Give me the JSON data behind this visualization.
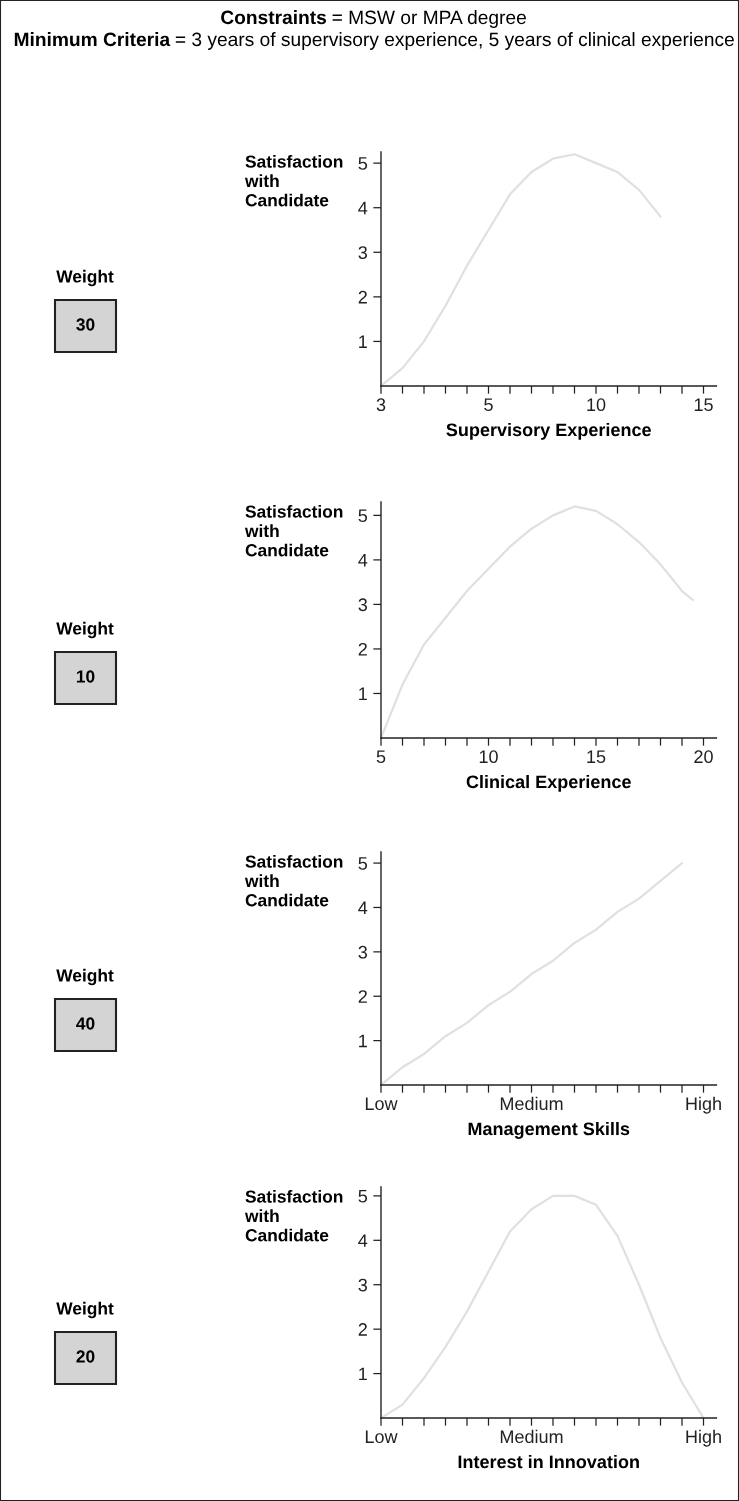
{
  "chart_data": [
    {
      "type": "line",
      "title": "Constraints = MSW or MPA degree",
      "subtitle": "Minimum Criteria = 3 years of supervisory experience, 5 years of clinical experience",
      "xlabel": "Supervisory Experience",
      "ylabel": "Satisfaction\nwith\nCandidate",
      "annotations": [
        "Weight",
        "30"
      ],
      "color": "#e0e0e0",
      "categories": [
        "3",
        null,
        null,
        null,
        null,
        "5",
        null,
        null,
        null,
        null,
        "10",
        null,
        null,
        null,
        null,
        "15"
      ],
      "values": [
        0,
        0.4,
        1.0,
        1.8,
        2.7,
        3.5,
        4.3,
        4.8,
        5.1,
        5.2,
        5.0,
        4.8,
        4.4,
        3.8,
        null,
        null
      ],
      "ylim": [
        0,
        5.25
      ],
      "yticks": [
        1,
        2,
        3,
        4,
        5
      ]
    },
    {
      "type": "line",
      "xlabel": "Clinical Experience",
      "ylabel": "Satisfaction\nwith\nCandidate",
      "annotations": [
        "Weight",
        "10"
      ],
      "color": "#e0e0e0",
      "x": [
        5,
        6,
        7,
        8,
        9,
        10,
        11,
        12,
        13,
        14,
        15,
        16,
        17,
        18,
        19,
        19.5
      ],
      "values": [
        0,
        1.2,
        2.1,
        2.7,
        3.3,
        3.8,
        4.3,
        4.7,
        5.0,
        5.2,
        5.1,
        4.8,
        4.4,
        3.9,
        3.3,
        3.1
      ],
      "xlim": [
        5,
        20.6
      ],
      "ylim": [
        0,
        5.3
      ],
      "yticks": [
        1,
        2,
        3,
        4,
        5
      ],
      "xticks": [
        5,
        {
          "value": 6,
          "label": null
        },
        {
          "value": 7,
          "label": null
        },
        {
          "value": 8,
          "label": null
        },
        {
          "value": 9,
          "label": null
        },
        10,
        {
          "value": 11,
          "label": null
        },
        {
          "value": 12,
          "label": null
        },
        {
          "value": 13,
          "label": null
        },
        {
          "value": 14,
          "label": null
        },
        15,
        {
          "value": 16,
          "label": null
        },
        {
          "value": 17,
          "label": null
        },
        {
          "value": 18,
          "label": null
        },
        {
          "value": 19,
          "label": null
        },
        20
      ]
    },
    {
      "type": "line",
      "xlabel": "Management Skills",
      "ylabel": "Satisfaction\nwith\nCandidate",
      "annotations": [
        "Weight",
        "40"
      ],
      "color": "#e0e0e0",
      "categories": [
        "Low",
        null,
        null,
        null,
        null,
        null,
        null,
        "Medium",
        null,
        null,
        null,
        null,
        null,
        null,
        null,
        "High"
      ],
      "values": [
        0,
        0.4,
        0.7,
        1.1,
        1.4,
        1.8,
        2.1,
        2.5,
        2.8,
        3.2,
        3.5,
        3.9,
        4.2,
        4.6,
        5.0,
        null
      ],
      "ylim": [
        0,
        5.25
      ],
      "yticks": [
        1,
        2,
        3,
        4,
        5
      ]
    },
    {
      "type": "line",
      "xlabel": "Interest in Innovation",
      "ylabel": "Satisfaction\nwith\nCandidate",
      "annotations": [
        "Weight",
        "20"
      ],
      "color": "#e0e0e0",
      "categories": [
        "Low",
        null,
        null,
        null,
        null,
        null,
        null,
        "Medium",
        null,
        null,
        null,
        null,
        null,
        null,
        null,
        "High"
      ],
      "values": [
        0,
        0.3,
        0.9,
        1.6,
        2.4,
        3.3,
        4.2,
        4.7,
        5.0,
        5.0,
        4.8,
        4.1,
        3.0,
        1.8,
        0.8,
        0
      ],
      "ylim": [
        0,
        5.2
      ],
      "yticks": [
        1,
        2,
        3,
        4,
        5
      ]
    }
  ]
}
